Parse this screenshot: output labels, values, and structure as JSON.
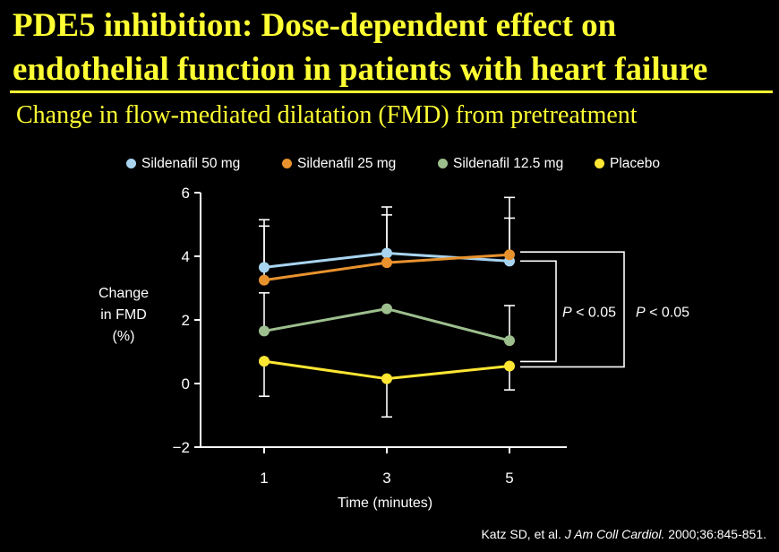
{
  "title_lines": [
    "PDE5 inhibition: Dose-dependent effect on",
    "endothelial function in patients with heart failure"
  ],
  "subtitle": "Change in flow-mediated dilatation (FMD) from pretreatment",
  "chart_data": {
    "type": "line",
    "x": [
      1,
      3,
      5
    ],
    "xlabel": "Time (minutes)",
    "ylabel_lines": [
      "Change",
      "in FMD",
      "(%)"
    ],
    "ylim": [
      -2,
      6
    ],
    "yticks": [
      6,
      4,
      2,
      0,
      -2
    ],
    "ytick_labels": [
      "6",
      "4",
      "2",
      "0",
      "−2"
    ],
    "xticks": [
      1,
      3,
      5
    ],
    "xtick_labels": [
      "1",
      "3",
      "5"
    ],
    "grid": false,
    "legend_position": "top",
    "series": [
      {
        "name": "Sildenafil 50 mg",
        "color": "#a8d4f0",
        "values": [
          3.65,
          4.1,
          3.85
        ],
        "err_upper": [
          5.15,
          5.55,
          5.2
        ]
      },
      {
        "name": "Sildenafil 25 mg",
        "color": "#e8922e",
        "values": [
          3.25,
          3.8,
          4.05
        ],
        "err_upper": [
          4.95,
          5.3,
          5.85
        ]
      },
      {
        "name": "Sildenafil 12.5 mg",
        "color": "#9dbf8e",
        "values": [
          1.65,
          2.35,
          1.35
        ],
        "err_upper": [
          2.85,
          null,
          2.45
        ]
      },
      {
        "name": "Placebo",
        "color": "#ffe633",
        "values": [
          0.7,
          0.15,
          0.55
        ],
        "err_lower": [
          -0.4,
          -1.05,
          -0.2
        ]
      }
    ],
    "annotations": [
      {
        "label_italic": "P",
        "label_rest": " < 0.05",
        "compares": [
          "Sildenafil 50 mg",
          "Placebo"
        ]
      },
      {
        "label_italic": "P",
        "label_rest": " < 0.05",
        "compares": [
          "Sildenafil 25 mg",
          "Placebo"
        ]
      }
    ]
  },
  "citation": {
    "authors": "Katz SD, et al. ",
    "journal": "J Am Coll Cardiol.",
    "details": " 2000;36:845-851."
  }
}
